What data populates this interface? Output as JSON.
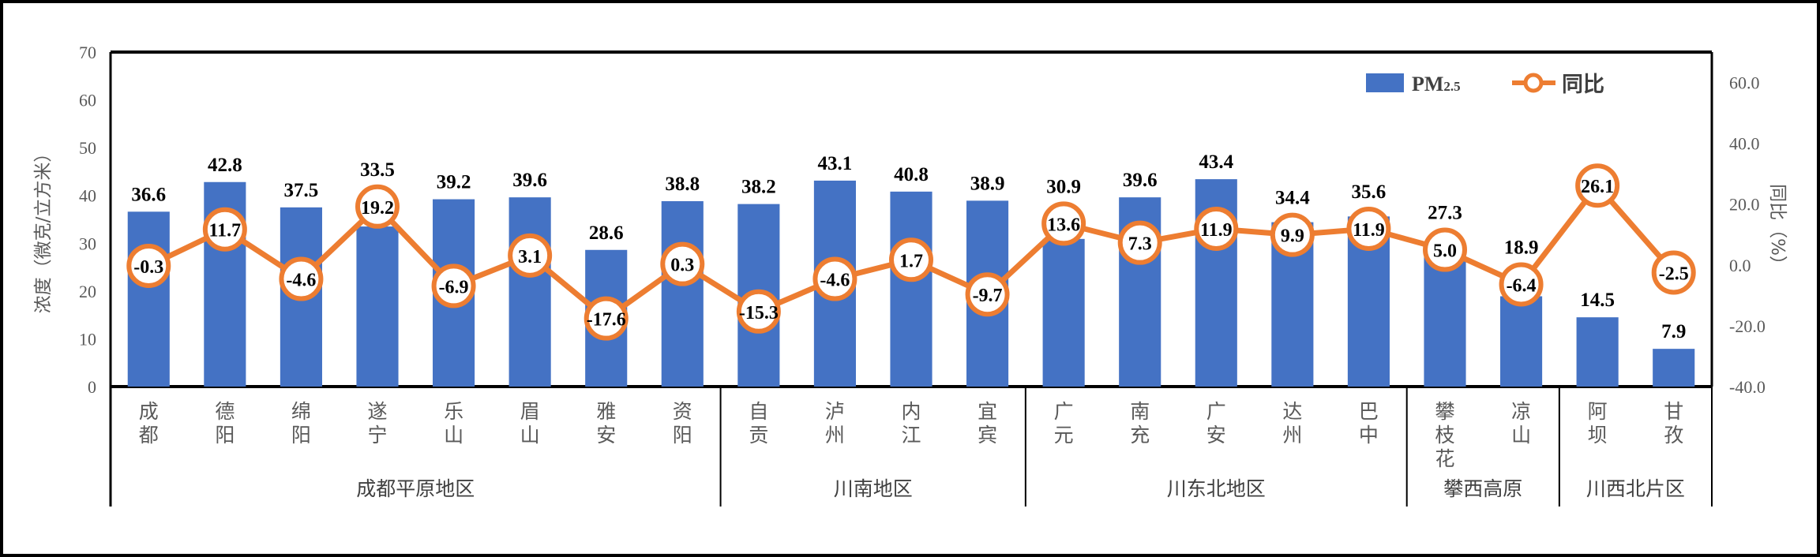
{
  "chart_data": {
    "type": "bar",
    "categories": [
      "成都",
      "德阳",
      "绵阳",
      "遂宁",
      "乐山",
      "眉山",
      "雅安",
      "资阳",
      "自贡",
      "泸州",
      "内江",
      "宜宾",
      "广元",
      "南充",
      "广安",
      "达州",
      "巴中",
      "攀枝花",
      "凉山",
      "阿坝",
      "甘孜"
    ],
    "groups": [
      {
        "name": "成都平原地区",
        "count": 8
      },
      {
        "name": "川南地区",
        "count": 4
      },
      {
        "name": "川东北地区",
        "count": 5
      },
      {
        "name": "攀西高原",
        "count": 2
      },
      {
        "name": "川西北片区",
        "count": 2
      }
    ],
    "series": [
      {
        "name": "PM2.5",
        "type": "bar",
        "axis": "left",
        "color": "#4472C4",
        "values": [
          36.6,
          42.8,
          37.5,
          33.5,
          39.2,
          39.6,
          28.6,
          38.8,
          38.2,
          43.1,
          40.8,
          38.9,
          30.9,
          39.6,
          43.4,
          34.4,
          35.6,
          27.3,
          18.9,
          14.5,
          7.9
        ]
      },
      {
        "name": "同比",
        "type": "line",
        "axis": "right",
        "color": "#ED7D31",
        "values": [
          -0.3,
          11.7,
          -4.6,
          19.2,
          -6.9,
          3.1,
          -17.6,
          0.3,
          -15.3,
          -4.6,
          1.7,
          -9.7,
          13.6,
          7.3,
          11.9,
          9.9,
          11.9,
          5.0,
          -6.4,
          26.1,
          -2.5
        ]
      }
    ],
    "legend": {
      "bar_label_main": "PM",
      "bar_label_sub": "2.5",
      "line_label": "同比",
      "position": "top-right"
    },
    "ylabel": "浓度（微克/立方米）",
    "y2label": "同比（%）",
    "ylim": [
      0,
      70
    ],
    "yticks": [
      0,
      10,
      20,
      30,
      40,
      50,
      60,
      70
    ],
    "y2lim": [
      -40,
      70
    ],
    "y2ticks": [
      "-40.0",
      "-20.0",
      "0.0",
      "20.0",
      "40.0",
      "60.0"
    ],
    "grid": false
  }
}
